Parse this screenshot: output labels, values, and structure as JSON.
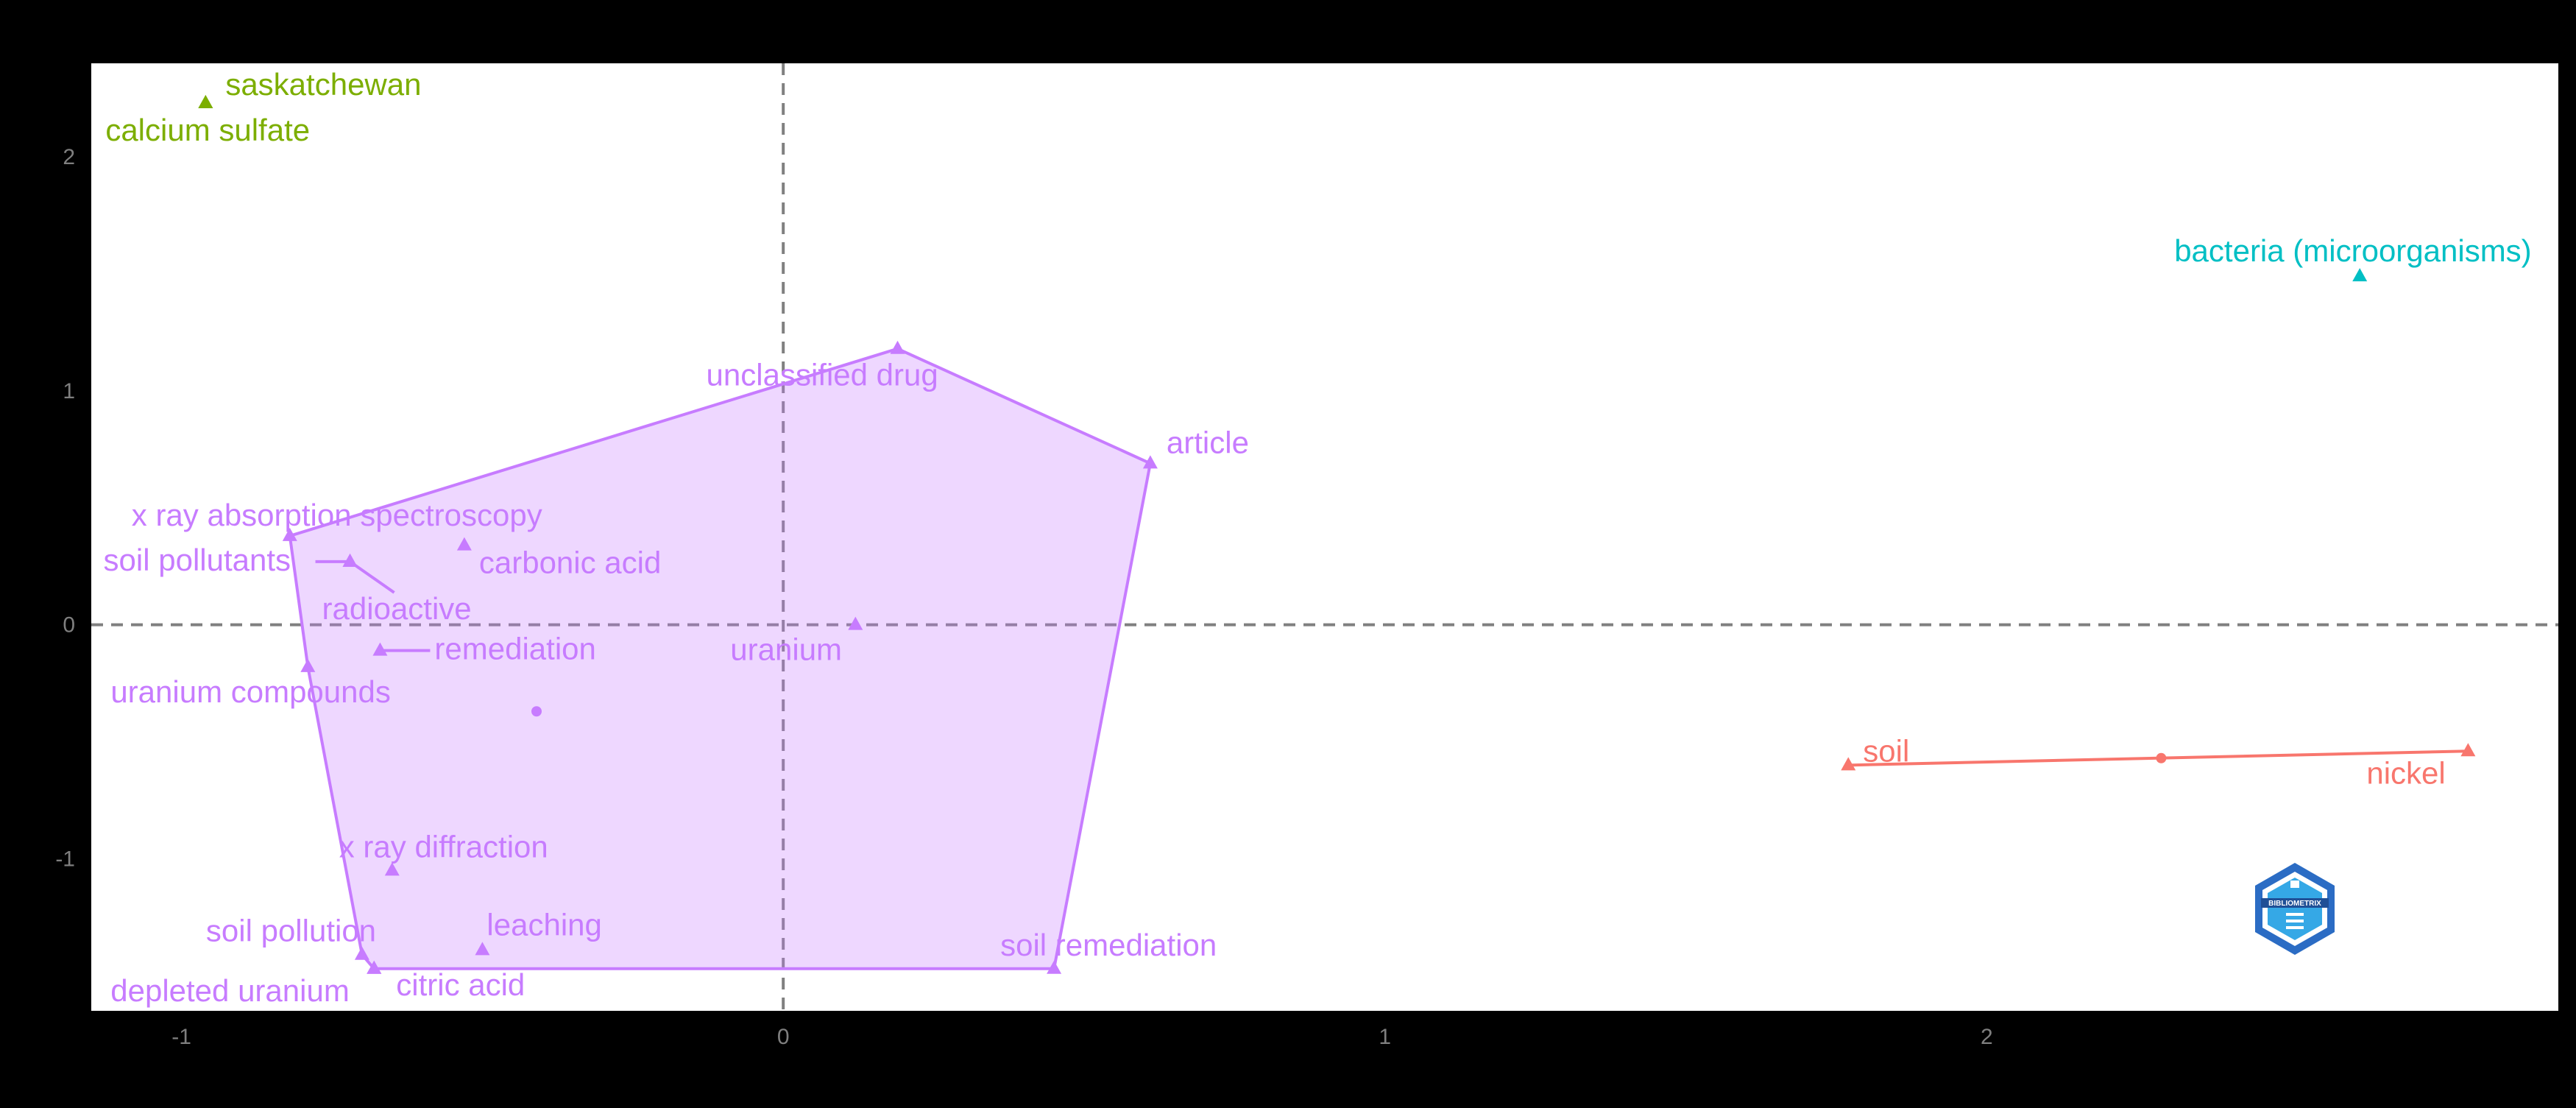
{
  "chart_data": {
    "type": "scatter",
    "title": "",
    "xlabel": "",
    "ylabel": "",
    "xlim": [
      -1.15,
      2.95
    ],
    "ylim": [
      -1.65,
      2.4
    ],
    "x_ticks": [
      -1,
      0,
      1,
      2
    ],
    "y_ticks": [
      -1,
      0,
      1,
      2
    ],
    "reference_lines": {
      "x": 0,
      "y": 0,
      "style": "dashed"
    },
    "grid": false,
    "legend": "none",
    "logo_text": "BIBLIOMETRIX",
    "clusters": [
      {
        "id": "cluster-purple",
        "color": "#C77CFF",
        "hull": true,
        "centroid": [
          -0.41,
          -0.37
        ],
        "points": [
          {
            "label": "unclassified drug",
            "x": 0.19,
            "y": 1.18
          },
          {
            "label": "article",
            "x": 0.61,
            "y": 0.69
          },
          {
            "label": "x ray absorption spectroscopy",
            "x": -0.82,
            "y": 0.38
          },
          {
            "label": "carbonic acid",
            "x": -0.53,
            "y": 0.34
          },
          {
            "label": "soil pollutants",
            "x": -0.72,
            "y": 0.27
          },
          {
            "label": "radioactive",
            "x": -0.72,
            "y": 0.27
          },
          {
            "label": "remediation",
            "x": -0.67,
            "y": -0.11
          },
          {
            "label": "uranium",
            "x": 0.12,
            "y": 0.0
          },
          {
            "label": "uranium compounds",
            "x": -0.79,
            "y": -0.18
          },
          {
            "label": "x ray diffraction",
            "x": -0.65,
            "y": -1.05
          },
          {
            "label": "leaching",
            "x": -0.5,
            "y": -1.39
          },
          {
            "label": "soil pollution",
            "x": -0.7,
            "y": -1.41
          },
          {
            "label": "citric acid",
            "x": -0.68,
            "y": -1.47
          },
          {
            "label": "depleted uranium",
            "x": -0.68,
            "y": -1.47
          },
          {
            "label": "soil remediation",
            "x": 0.45,
            "y": -1.47
          }
        ]
      },
      {
        "id": "cluster-green",
        "color": "#7CAE00",
        "hull": false,
        "points": [
          {
            "label": "saskatchewan",
            "x": -0.96,
            "y": 2.23
          },
          {
            "label": "calcium sulfate",
            "x": -0.96,
            "y": 2.23
          }
        ]
      },
      {
        "id": "cluster-cyan",
        "color": "#00BFC4",
        "hull": false,
        "points": [
          {
            "label": "bacteria (microorganisms)",
            "x": 2.62,
            "y": 1.49
          }
        ]
      },
      {
        "id": "cluster-red",
        "color": "#F8766D",
        "hull": true,
        "centroid": [
          2.29,
          -0.57
        ],
        "points": [
          {
            "label": "soil",
            "x": 1.77,
            "y": -0.6
          },
          {
            "label": "nickel",
            "x": 2.8,
            "y": -0.54
          }
        ]
      }
    ]
  }
}
